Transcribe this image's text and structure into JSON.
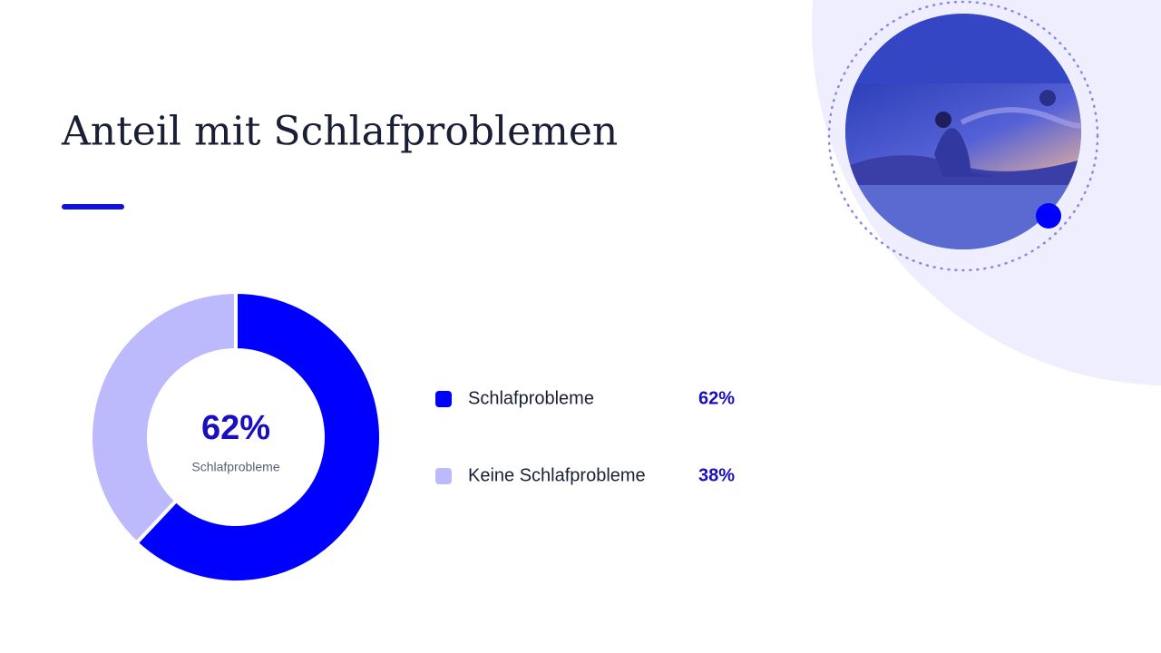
{
  "chart_data": {
    "type": "pie",
    "title": "Anteil mit Schlafproblemen",
    "categories": [
      "Schlafprobleme",
      "Keine Schlafprobleme"
    ],
    "values": [
      62,
      38
    ],
    "value_labels": [
      "62%",
      "38%"
    ],
    "colors": [
      "#0000ff",
      "#bcbafc"
    ],
    "donut": true
  }
}
